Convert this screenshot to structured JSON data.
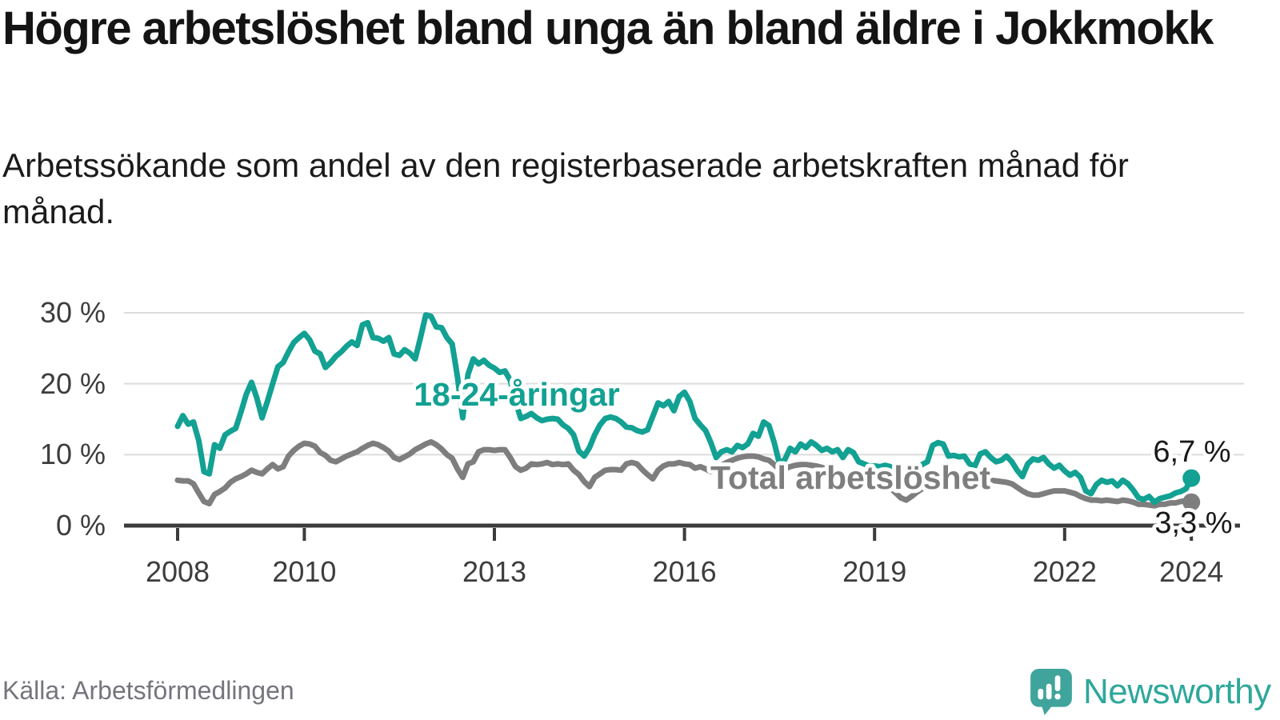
{
  "header": {
    "title": "Högre arbetslöshet bland unga än bland äldre i Jokkmokk",
    "subtitle": "Arbetssökande som andel av den registerbaserade arbetskraften månad för månad."
  },
  "footer": {
    "source": "Källa: Arbetsförmedlingen",
    "brand": "Newsworthy"
  },
  "colors": {
    "youth": "#12a192",
    "total": "#7e7e7e",
    "axis": "#3b3b3b",
    "grid": "#dcdcdc",
    "tick_label": "#3d3d3d",
    "end_label": "#1a1a1a",
    "logo": "#3fa49b"
  },
  "chart_data": {
    "type": "line",
    "title": "Högre arbetslöshet bland unga än bland äldre i Jokkmokk",
    "subtitle": "Arbetssökande som andel av den registerbaserade arbetskraften månad för månad.",
    "x_unit": "month",
    "x_start_year": 2008,
    "x_end_year": 2024,
    "x_frequency": "monthly",
    "ylim": [
      0,
      31
    ],
    "grid": "horizontal",
    "legend_position": "inline-labels",
    "yticks": [
      {
        "v": 0,
        "label": "0 %"
      },
      {
        "v": 10,
        "label": "10 %"
      },
      {
        "v": 20,
        "label": "20 %"
      },
      {
        "v": 30,
        "label": "30 %"
      }
    ],
    "xticks": [
      {
        "v": 2008,
        "label": "2008"
      },
      {
        "v": 2010,
        "label": "2010"
      },
      {
        "v": 2013,
        "label": "2013"
      },
      {
        "v": 2016,
        "label": "2016"
      },
      {
        "v": 2019,
        "label": "2019"
      },
      {
        "v": 2022,
        "label": "2022"
      },
      {
        "v": 2024,
        "label": "2024"
      }
    ],
    "series": [
      {
        "name": "18-24-åringar",
        "color": "#12a192",
        "end_label": "6,7 %",
        "end_value": 6.7,
        "values": [
          14,
          15.5,
          14.3,
          14.6,
          12,
          7.6,
          7.3,
          11.4,
          10.9,
          12.8,
          13.3,
          13.7,
          16,
          18.5,
          20.2,
          18,
          15.2,
          17.5,
          20,
          22.4,
          23,
          24.5,
          25.8,
          26.5,
          27.1,
          26.2,
          24.6,
          24.2,
          22.3,
          23,
          23.9,
          24.5,
          25.3,
          25.9,
          25.4,
          28.3,
          28.6,
          26.5,
          26.4,
          26,
          26.5,
          24.2,
          24,
          24.8,
          24.3,
          23.5,
          26.5,
          29.7,
          29.5,
          28,
          27.9,
          26.5,
          25.6,
          21,
          15.2,
          21.3,
          23.5,
          22.8,
          23.3,
          22.6,
          22.2,
          21.6,
          21.8,
          20.5,
          17.5,
          15.1,
          15.4,
          15.8,
          15.2,
          14.8,
          15,
          15.1,
          15,
          14.2,
          13.7,
          12.8,
          10.5,
          9.8,
          11,
          12.8,
          14.2,
          15.1,
          15.3,
          15.1,
          14.6,
          13.9,
          13.8,
          13.4,
          13.2,
          13.5,
          15.4,
          17.3,
          16.9,
          17.5,
          16.2,
          18.2,
          18.8,
          17.5,
          15.1,
          14.2,
          13.4,
          11.7,
          9.6,
          10.4,
          10.7,
          10.4,
          11.3,
          11,
          11.5,
          13,
          12.6,
          14.6,
          14.1,
          11.7,
          8.7,
          9.3,
          10.9,
          10.4,
          11.5,
          11,
          11.8,
          11.3,
          10.6,
          10.9,
          10.4,
          10.7,
          9.6,
          10.7,
          10.3,
          9,
          8.7,
          8.4,
          8.4,
          8.3,
          8.5,
          8.3,
          8,
          7.6,
          7.3,
          7.8,
          8.3,
          8.6,
          9,
          11.3,
          11.7,
          11.5,
          9.8,
          9.9,
          9.7,
          9.8,
          8.7,
          8.4,
          10.1,
          10.4,
          9.6,
          9,
          9.2,
          9.8,
          9,
          7.8,
          6.9,
          8.7,
          9.4,
          9.2,
          9.6,
          8.7,
          8.1,
          8.5,
          7.7,
          7.1,
          7.5,
          6.8,
          4.9,
          4.5,
          5.8,
          6.4,
          6.1,
          6.3,
          5.6,
          6.4,
          5.9,
          5,
          3.9,
          3.7,
          4.1,
          3.3,
          3.8,
          4,
          4.2,
          4.6,
          4.8,
          5.2,
          6.7
        ]
      },
      {
        "name": "Total arbetslöshet",
        "color": "#7e7e7e",
        "end_label": "3,3 %",
        "end_value": 3.3,
        "values": [
          6.4,
          6.3,
          6.3,
          5.9,
          4.6,
          3.4,
          3.1,
          4.4,
          4.8,
          5.3,
          6.1,
          6.6,
          6.9,
          7.3,
          7.8,
          7.5,
          7.3,
          8,
          8.6,
          8,
          8.3,
          9.8,
          10.6,
          11.2,
          11.6,
          11.5,
          11.2,
          10.3,
          9.9,
          9.2,
          9,
          9.4,
          9.8,
          10.1,
          10.4,
          10.9,
          11.3,
          11.6,
          11.4,
          11,
          10.5,
          9.6,
          9.3,
          9.7,
          10.1,
          10.7,
          11.1,
          11.5,
          11.8,
          11.4,
          10.8,
          10,
          9.5,
          8,
          6.8,
          8.7,
          9,
          10.4,
          10.7,
          10.7,
          10.6,
          10.7,
          10.7,
          9.6,
          8.3,
          7.8,
          8.1,
          8.7,
          8.6,
          8.7,
          8.9,
          8.6,
          8.7,
          8.6,
          8.7,
          7.8,
          7.2,
          6.2,
          5.5,
          6.8,
          7.3,
          7.8,
          7.9,
          7.9,
          7.8,
          8.7,
          8.9,
          8.7,
          7.9,
          7.2,
          6.6,
          7.8,
          8.4,
          8.7,
          8.7,
          8.9,
          8.7,
          8.6,
          8.1,
          8.3,
          8,
          7.6,
          7.8,
          8.5,
          8.9,
          9.2,
          9.5,
          9.7,
          9.8,
          9.8,
          9.7,
          9.4,
          9.2,
          8.6,
          7.8,
          8,
          8.3,
          8.5,
          8.6,
          8.6,
          8.5,
          8.4,
          8.2,
          8,
          7.7,
          7.2,
          6.6,
          6.9,
          7.1,
          7.2,
          7.1,
          7,
          6.8,
          6.5,
          6,
          5.3,
          4.6,
          3.9,
          3.6,
          4.1,
          4.7,
          5.2,
          5.5,
          5.8,
          6,
          6.1,
          6.3,
          6.5,
          6.7,
          6.8,
          6.8,
          6.7,
          6.6,
          6.5,
          6.4,
          6.3,
          6.2,
          6.1,
          5.9,
          5.4,
          4.9,
          4.5,
          4.3,
          4.3,
          4.5,
          4.7,
          4.9,
          4.9,
          4.9,
          4.7,
          4.5,
          4.1,
          3.8,
          3.6,
          3.6,
          3.5,
          3.6,
          3.5,
          3.4,
          3.6,
          3.5,
          3.3,
          3,
          3,
          2.9,
          2.8,
          3,
          3,
          3.2,
          3.2,
          3.4,
          3.5,
          3.3
        ]
      }
    ]
  }
}
